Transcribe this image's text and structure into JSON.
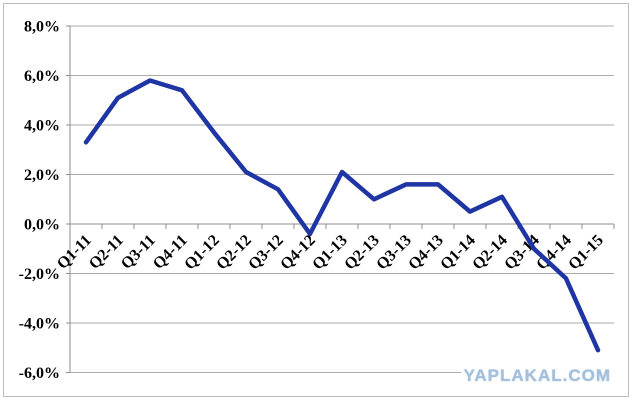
{
  "watermark": {
    "text": "YAPLAKAL.COM",
    "color": "#a3c1de"
  },
  "chart_data": {
    "type": "line",
    "title": "",
    "xlabel": "",
    "ylabel": "",
    "unit": "%",
    "categories": [
      "Q1-11",
      "Q2-11",
      "Q3-11",
      "Q4-11",
      "Q1-12",
      "Q2-12",
      "Q3-12",
      "Q4-12",
      "Q1-13",
      "Q2-13",
      "Q3-13",
      "Q4-13",
      "Q1-14",
      "Q2-14",
      "Q3-14",
      "Q4-14",
      "Q1-15"
    ],
    "values": [
      3.3,
      5.1,
      5.8,
      5.4,
      3.7,
      2.1,
      1.4,
      -0.4,
      2.1,
      1.0,
      1.6,
      1.6,
      0.5,
      1.1,
      -1.0,
      -2.2,
      -5.1
    ],
    "ylim": [
      -6,
      8
    ],
    "y_tick_values": [
      8,
      6,
      4,
      2,
      0,
      -2,
      -4,
      -6
    ],
    "y_tick_labels": [
      "8,0%",
      "6,0%",
      "4,0%",
      "2,0%",
      "0,0%",
      "-2,0%",
      "-4,0%",
      "-6,0%"
    ],
    "x_label_rotation_deg": -45,
    "grid": true,
    "legend": false,
    "line_color": "#1f35a3",
    "gridline_color": "#ababab",
    "axis_color": "#8c8c8c",
    "label_color": "#000000"
  }
}
